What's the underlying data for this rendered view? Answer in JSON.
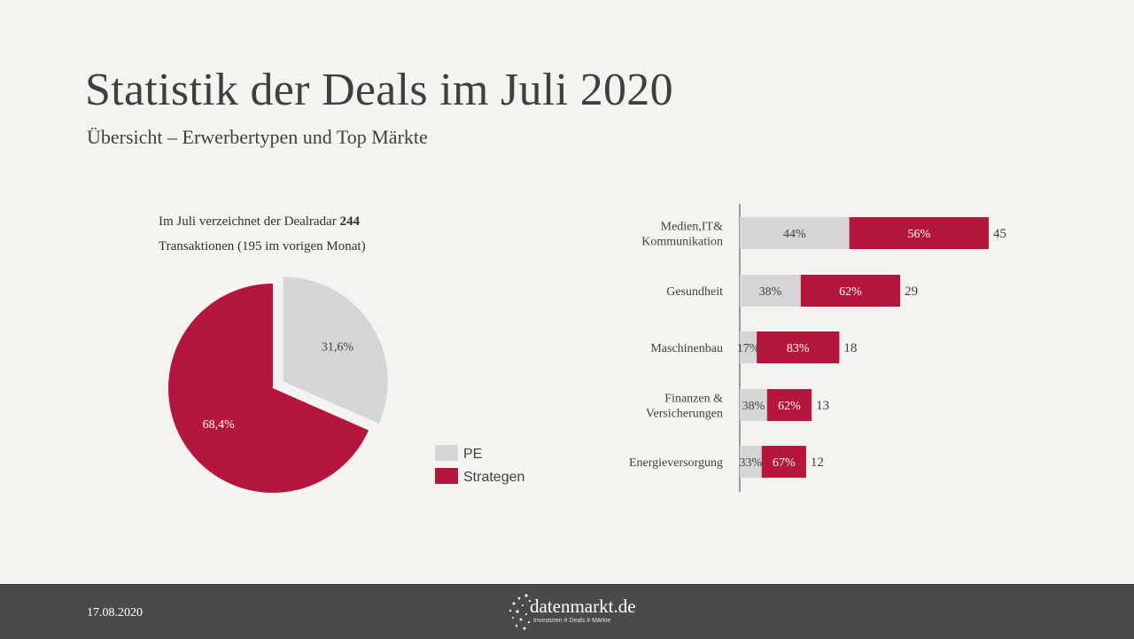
{
  "header": {
    "title": "Statistik der Deals im Juli 2020",
    "subtitle": "Übersicht – Erwerbertypen und Top Märkte"
  },
  "intro": {
    "line1_prefix": "Im Juli verzeichnet der Dealradar",
    "line1_bold": "244",
    "line2": "Transaktionen (195 im vorigen Monat)"
  },
  "chart_data": [
    {
      "type": "pie",
      "slices": [
        {
          "name": "PE",
          "value": 31.6,
          "label": "31,6%",
          "color": "#d5d5d7"
        },
        {
          "name": "Strategen",
          "value": 68.4,
          "label": "68,4%",
          "color": "#b5163c"
        }
      ],
      "legend": [
        "PE",
        "Strategen"
      ],
      "legend_position": "right"
    },
    {
      "type": "bar",
      "orientation": "horizontal",
      "stacked": true,
      "categories": [
        {
          "lines": [
            "Medien,IT&",
            "Kommunikation"
          ],
          "total": 45,
          "pe": 44,
          "strategen": 56
        },
        {
          "lines": [
            "Gesundheit"
          ],
          "total": 29,
          "pe": 38,
          "strategen": 62
        },
        {
          "lines": [
            "Maschinenbau"
          ],
          "total": 18,
          "pe": 17,
          "strategen": 83
        },
        {
          "lines": [
            "Finanzen &",
            "Versicherungen"
          ],
          "total": 13,
          "pe": 38,
          "strategen": 62
        },
        {
          "lines": [
            "Energieversorgung"
          ],
          "total": 12,
          "pe": 33,
          "strategen": 67
        }
      ],
      "series": [
        {
          "name": "PE",
          "color": "#d5d5d7"
        },
        {
          "name": "Strategen",
          "color": "#b5163c"
        }
      ]
    }
  ],
  "footer": {
    "date": "17.08.2020",
    "brand": "datenmarkt.de",
    "tagline": "Investoren # Deals # Märkte"
  }
}
